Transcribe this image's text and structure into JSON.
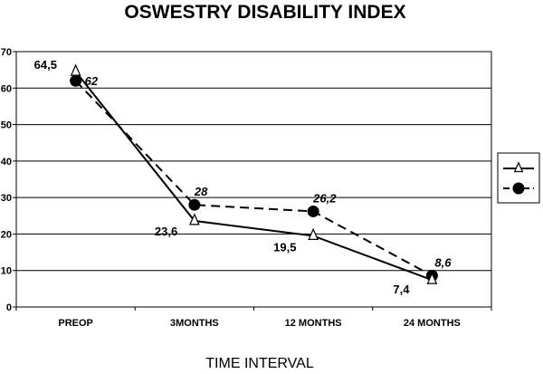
{
  "chart_data": {
    "type": "line",
    "title": "OSWESTRY DISABILITY INDEX",
    "xlabel": "TIME INTERVAL",
    "ylabel": "",
    "categories": [
      "PREOP",
      "3MONTHS",
      "12 MONTHS",
      "24 MONTHS"
    ],
    "ylim": [
      0,
      70
    ],
    "yticks": [
      0,
      10,
      20,
      30,
      40,
      50,
      60,
      70
    ],
    "grid": true,
    "legend": "right",
    "series": [
      {
        "marker": "triangle",
        "line": "solid",
        "values": [
          64.5,
          23.6,
          19.5,
          7.4
        ],
        "labels": [
          "64,5",
          "23,6",
          "19,5",
          "7,4"
        ]
      },
      {
        "marker": "circle",
        "line": "dashed",
        "values": [
          62,
          28,
          26.2,
          8.6
        ],
        "labels": [
          "62",
          "28",
          "26,2",
          "8,6"
        ]
      }
    ]
  }
}
